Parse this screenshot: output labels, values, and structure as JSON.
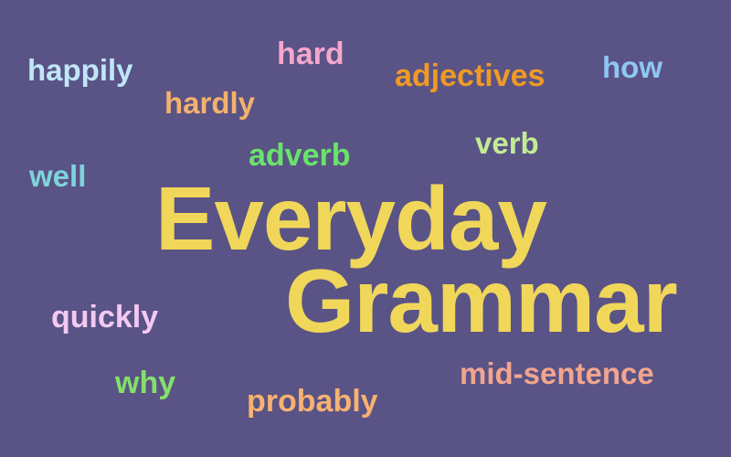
{
  "background": "#5a5385",
  "title": {
    "line1": "Everyday",
    "line2": "Grammar",
    "color": "#f0d75a"
  },
  "words": [
    {
      "key": "happily",
      "text": "happily",
      "color": "#bfe6f7"
    },
    {
      "key": "hard",
      "text": "hard",
      "color": "#f6a6cc"
    },
    {
      "key": "adjectives",
      "text": "adjectives",
      "color": "#ee9a24"
    },
    {
      "key": "how",
      "text": "how",
      "color": "#8fc7f2"
    },
    {
      "key": "hardly",
      "text": "hardly",
      "color": "#f4b16e"
    },
    {
      "key": "verb",
      "text": "verb",
      "color": "#c2ec94"
    },
    {
      "key": "adverb",
      "text": "adverb",
      "color": "#69e36a"
    },
    {
      "key": "well",
      "text": "well",
      "color": "#7fd3da"
    },
    {
      "key": "quickly",
      "text": "quickly",
      "color": "#f3c9f4"
    },
    {
      "key": "why",
      "text": "why",
      "color": "#84e06a"
    },
    {
      "key": "mid_sentence",
      "text": "mid-sentence",
      "color": "#f2a58e"
    },
    {
      "key": "probably",
      "text": "probably",
      "color": "#f6b271"
    }
  ]
}
